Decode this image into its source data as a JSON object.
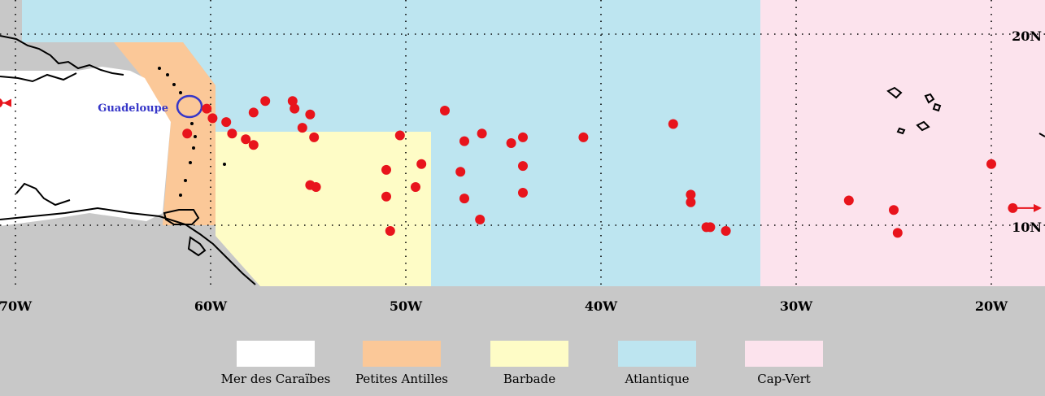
{
  "map": {
    "longitude_labels": [
      {
        "lon": 70,
        "text": "70W"
      },
      {
        "lon": 60,
        "text": "60W"
      },
      {
        "lon": 50,
        "text": "50W"
      },
      {
        "lon": 40,
        "text": "40W"
      },
      {
        "lon": 30,
        "text": "30W"
      },
      {
        "lon": 20,
        "text": "20W"
      }
    ],
    "latitude_labels": [
      {
        "lat": 20,
        "text": "20N"
      },
      {
        "lat": 10,
        "text": "10N"
      }
    ],
    "place_label": {
      "text": "Guadeloupe",
      "lon": 61.4,
      "lat": 16.2
    },
    "colors": {
      "land": "#c8c8c8",
      "caraibes": "#ffffff",
      "petites_antilles": "#fbc898",
      "barbade": "#fefcc6",
      "atlantique": "#bde5f0",
      "cap_vert": "#fce3ed",
      "points": "#e8141c",
      "label": "#3636c8",
      "arrow": "#e8141c"
    },
    "genesis_points": [
      {
        "lon": 60.2,
        "lat": 16.1
      },
      {
        "lon": 59.9,
        "lat": 15.6
      },
      {
        "lon": 59.2,
        "lat": 15.4
      },
      {
        "lon": 58.9,
        "lat": 14.8
      },
      {
        "lon": 58.2,
        "lat": 14.5
      },
      {
        "lon": 57.8,
        "lat": 14.2
      },
      {
        "lon": 57.8,
        "lat": 15.9
      },
      {
        "lon": 57.2,
        "lat": 16.5
      },
      {
        "lon": 55.8,
        "lat": 16.5
      },
      {
        "lon": 55.7,
        "lat": 16.1
      },
      {
        "lon": 54.9,
        "lat": 15.8
      },
      {
        "lon": 55.3,
        "lat": 15.1
      },
      {
        "lon": 54.7,
        "lat": 14.6
      },
      {
        "lon": 54.9,
        "lat": 12.1
      },
      {
        "lon": 54.6,
        "lat": 12.0
      },
      {
        "lon": 61.2,
        "lat": 14.8
      },
      {
        "lon": 50.3,
        "lat": 14.7
      },
      {
        "lon": 48.0,
        "lat": 16.0
      },
      {
        "lon": 47.0,
        "lat": 14.4
      },
      {
        "lon": 46.1,
        "lat": 14.8
      },
      {
        "lon": 44.6,
        "lat": 14.3
      },
      {
        "lon": 44.0,
        "lat": 14.6
      },
      {
        "lon": 40.9,
        "lat": 14.6
      },
      {
        "lon": 36.3,
        "lat": 15.3
      },
      {
        "lon": 51.0,
        "lat": 12.9
      },
      {
        "lon": 49.2,
        "lat": 13.2
      },
      {
        "lon": 47.2,
        "lat": 12.8
      },
      {
        "lon": 44.0,
        "lat": 13.1
      },
      {
        "lon": 51.0,
        "lat": 11.5
      },
      {
        "lon": 49.5,
        "lat": 12.0
      },
      {
        "lon": 47.0,
        "lat": 11.4
      },
      {
        "lon": 44.0,
        "lat": 11.7
      },
      {
        "lon": 46.2,
        "lat": 10.3
      },
      {
        "lon": 50.8,
        "lat": 9.7
      },
      {
        "lon": 35.4,
        "lat": 11.6
      },
      {
        "lon": 35.4,
        "lat": 11.2
      },
      {
        "lon": 34.6,
        "lat": 9.9
      },
      {
        "lon": 34.4,
        "lat": 9.9
      },
      {
        "lon": 33.6,
        "lat": 9.7
      },
      {
        "lon": 27.3,
        "lat": 11.3
      },
      {
        "lon": 25.0,
        "lat": 10.8
      },
      {
        "lon": 24.8,
        "lat": 9.6
      },
      {
        "lon": 20.0,
        "lat": 13.2
      }
    ],
    "offmap_points": [
      {
        "lon": 70.9,
        "lat": 16.4,
        "direction": "west"
      },
      {
        "lon": 18.9,
        "lat": 10.9,
        "direction": "east"
      }
    ]
  },
  "legend": [
    {
      "key": "caraibes",
      "label": "Mer des Caraïbes"
    },
    {
      "key": "petites_antilles",
      "label": "Petites Antilles"
    },
    {
      "key": "barbade",
      "label": "Barbade"
    },
    {
      "key": "atlantique",
      "label": "Atlantique"
    },
    {
      "key": "cap_vert",
      "label": "Cap-Vert"
    }
  ]
}
